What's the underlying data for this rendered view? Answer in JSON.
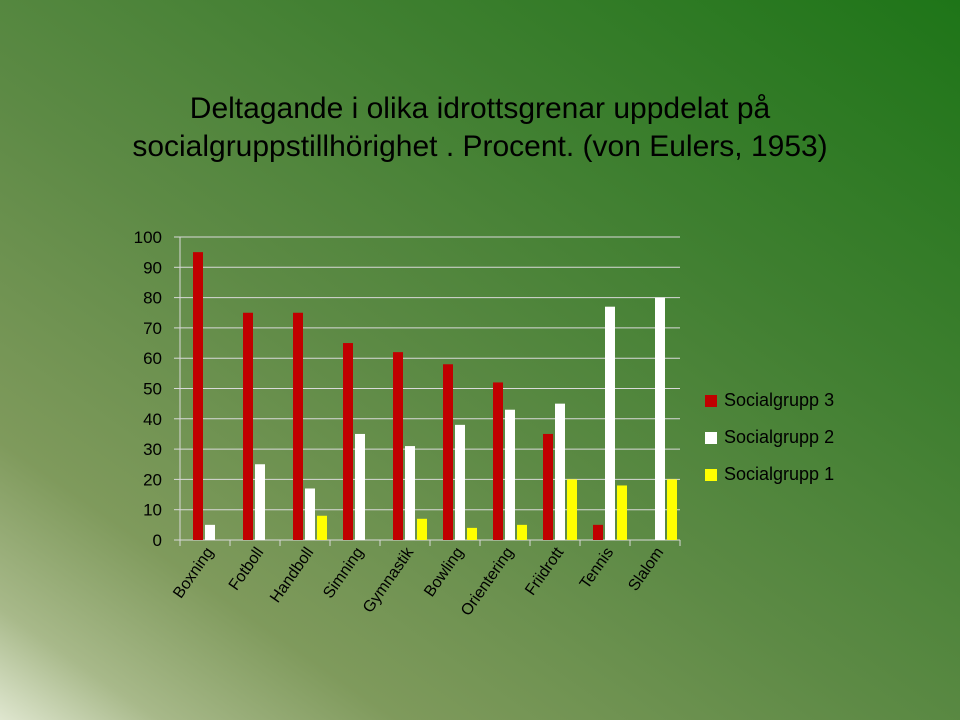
{
  "slide": {
    "title_line1": "Deltagande i olika idrottsgrenar uppdelat på",
    "title_line2": "socialgruppstillhörighet . Procent. (von Eulers, 1953)"
  },
  "chart_data": {
    "type": "bar",
    "categories": [
      "Boxning",
      "Fotboll",
      "Handboll",
      "Simning",
      "Gymnastik",
      "Bowling",
      "Orientering",
      "Friidrott",
      "Tennis",
      "Slalom"
    ],
    "series": [
      {
        "name": "Socialgrupp 3",
        "color": "#c00000",
        "values": [
          95,
          75,
          75,
          65,
          62,
          58,
          52,
          35,
          5,
          0
        ]
      },
      {
        "name": "Socialgrupp 2",
        "color": "#ffffff",
        "values": [
          5,
          25,
          17,
          35,
          31,
          38,
          43,
          45,
          77,
          80
        ]
      },
      {
        "name": "Socialgrupp 1",
        "color": "#ffff00",
        "values": [
          0,
          0,
          8,
          0,
          7,
          4,
          5,
          20,
          18,
          20
        ]
      }
    ],
    "ylim": [
      0,
      100
    ],
    "yticks": [
      0,
      10,
      20,
      30,
      40,
      50,
      60,
      70,
      80,
      90,
      100
    ],
    "grid": true,
    "legend_position": "right"
  }
}
